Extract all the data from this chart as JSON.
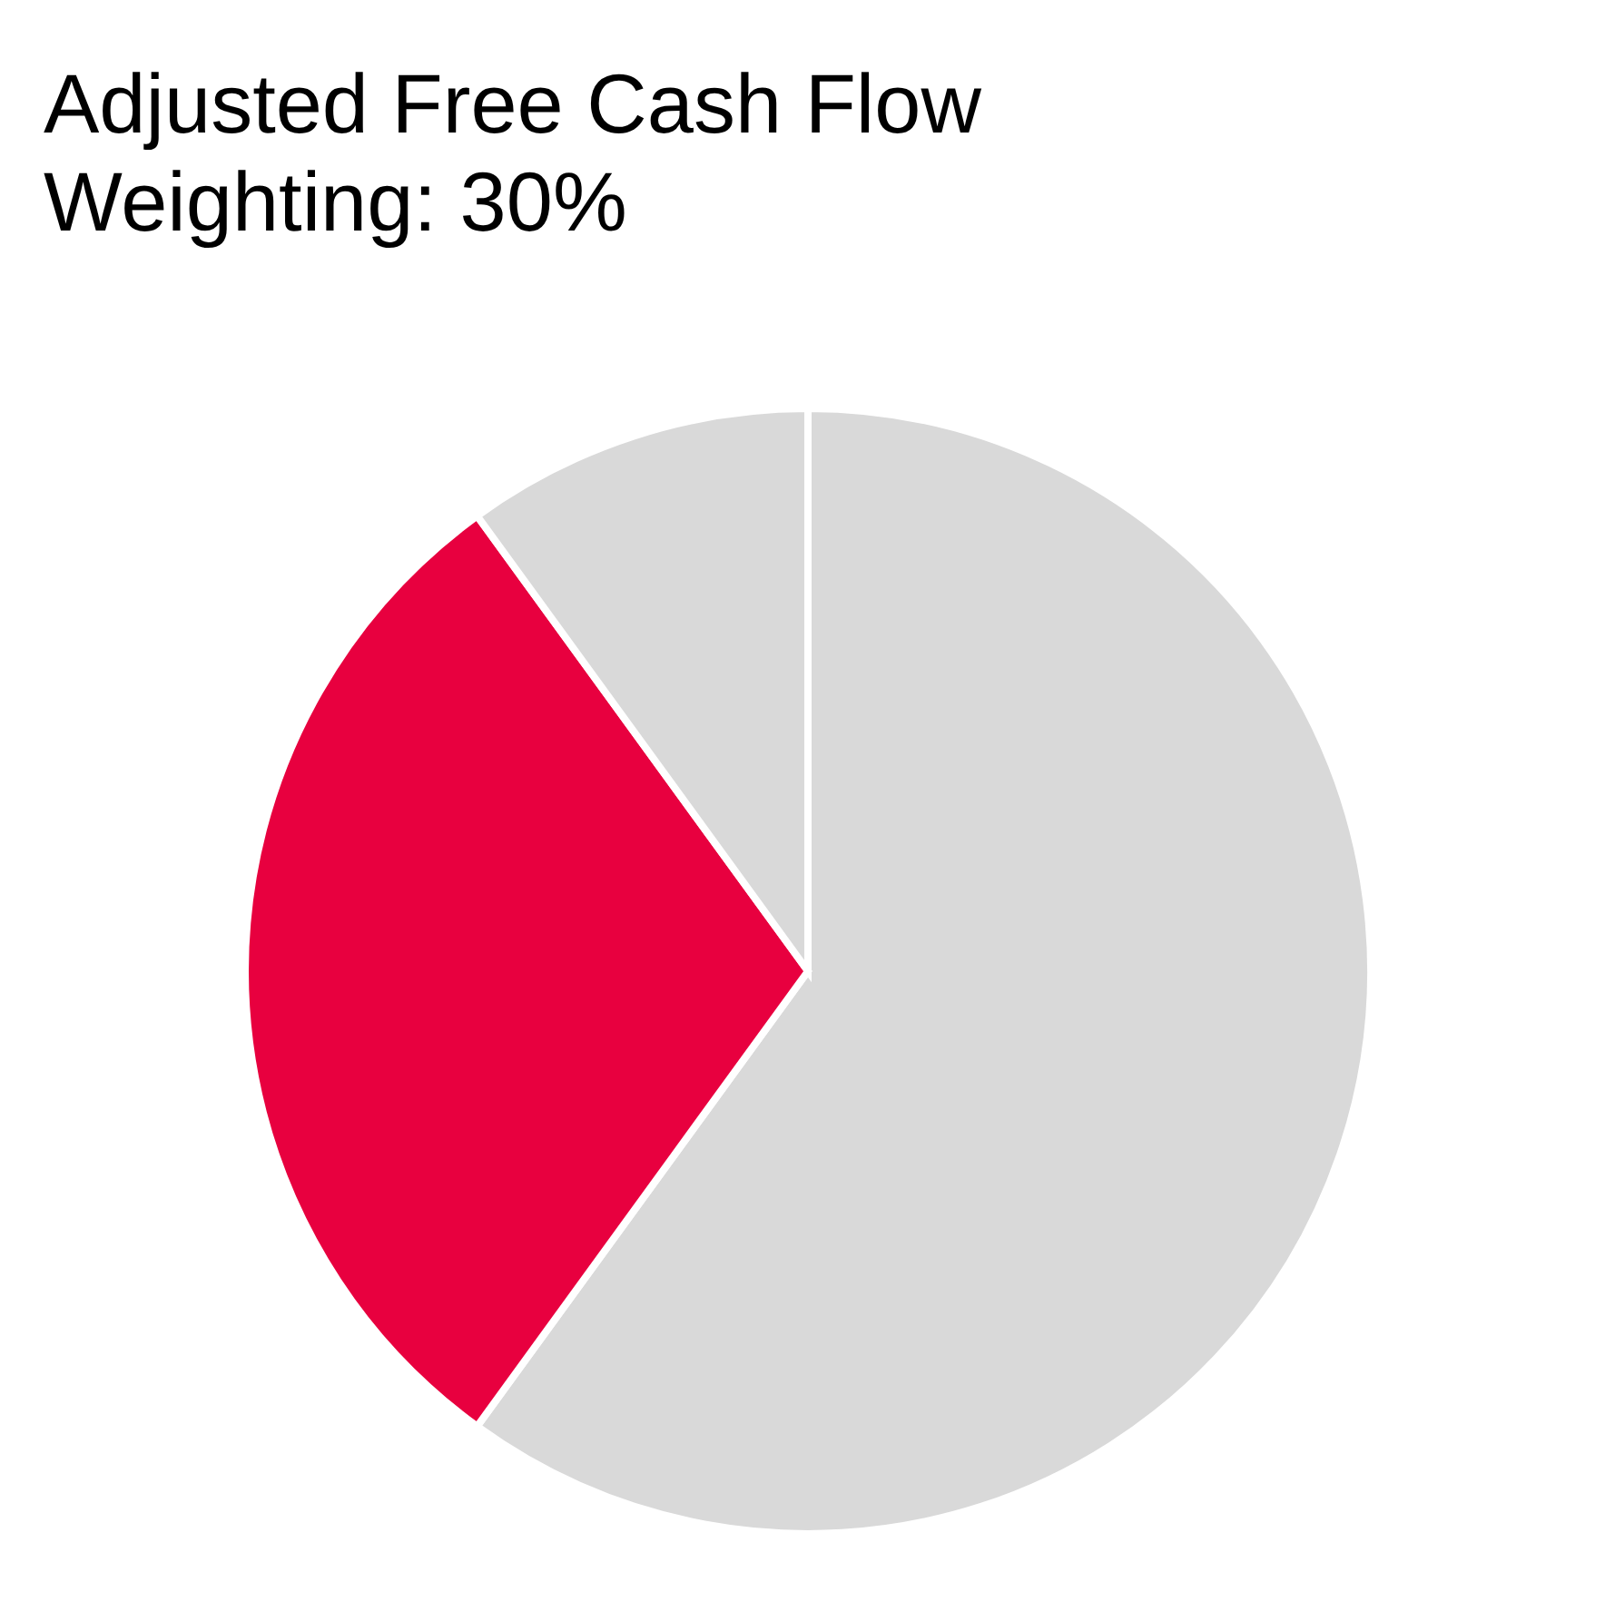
{
  "chart_data": {
    "type": "pie",
    "title": "Adjusted Free Cash Flow",
    "subtitle": "Weighting: 30%",
    "categories": [
      null,
      null,
      null
    ],
    "values": [
      60,
      30,
      10
    ],
    "colors": [
      "#d9d9d9",
      "#e8003f",
      "#d9d9d9"
    ]
  }
}
